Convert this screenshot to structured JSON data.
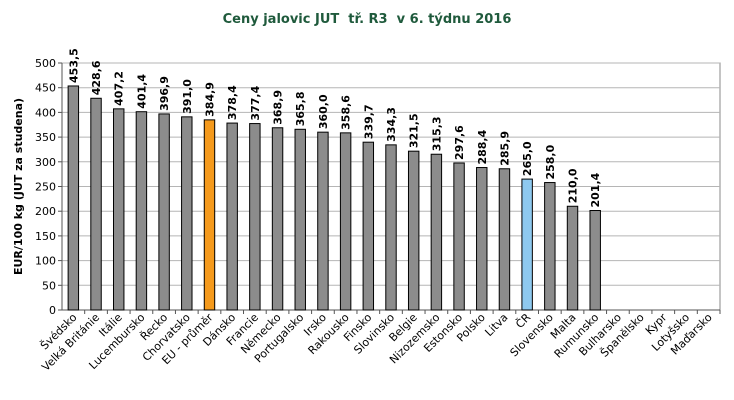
{
  "chart_data": {
    "type": "bar",
    "title": "Ceny jalovic JUT  tř. R3  v 6. týdnu 2016",
    "ylabel": "EUR/100 kg (JUT za studena)",
    "xlabel": "",
    "ylim": [
      0,
      500
    ],
    "ytick_step": 50,
    "grid": true,
    "categories": [
      "Švédsko",
      "Velká Británie",
      "Itálie",
      "Lucembursko",
      "Řecko",
      "Chorvatsko",
      "EU - průměr",
      "Dánsko",
      "Francie",
      "Německo",
      "Portugalsko",
      "Irsko",
      "Rakousko",
      "Finsko",
      "Slovinsko",
      "Belgie",
      "Nizozemsko",
      "Estonsko",
      "Polsko",
      "Litva",
      "ČR",
      "Slovensko",
      "Malta",
      "Rumunsko",
      "Bulharsko",
      "Španělsko",
      "Kypr",
      "Lotyšsko",
      "Maďarsko"
    ],
    "values": [
      453.5,
      428.6,
      407.2,
      401.4,
      396.9,
      391.0,
      384.9,
      378.4,
      377.4,
      368.9,
      365.8,
      360.0,
      358.6,
      339.7,
      334.3,
      321.5,
      315.3,
      297.6,
      288.4,
      285.9,
      265.0,
      258.0,
      210.0,
      201.4,
      null,
      null,
      null,
      null,
      null
    ],
    "value_labels": [
      "453,5",
      "428,6",
      "407,2",
      "401,4",
      "396,9",
      "391,0",
      "384,9",
      "378,4",
      "377,4",
      "368,9",
      "365,8",
      "360,0",
      "358,6",
      "339,7",
      "334,3",
      "321,5",
      "315,3",
      "297,6",
      "288,4",
      "285,9",
      "265,0",
      "258,0",
      "210,0",
      "201,4",
      "",
      "",
      "",
      "",
      ""
    ],
    "colors": {
      "default": "#8c8c8c",
      "highlight_eu": "#f59a1c",
      "highlight_cr": "#8ec9ef",
      "title": "#1f5a3c"
    },
    "highlight": {
      "EU - průměr": "highlight_eu",
      "ČR": "highlight_cr"
    }
  }
}
